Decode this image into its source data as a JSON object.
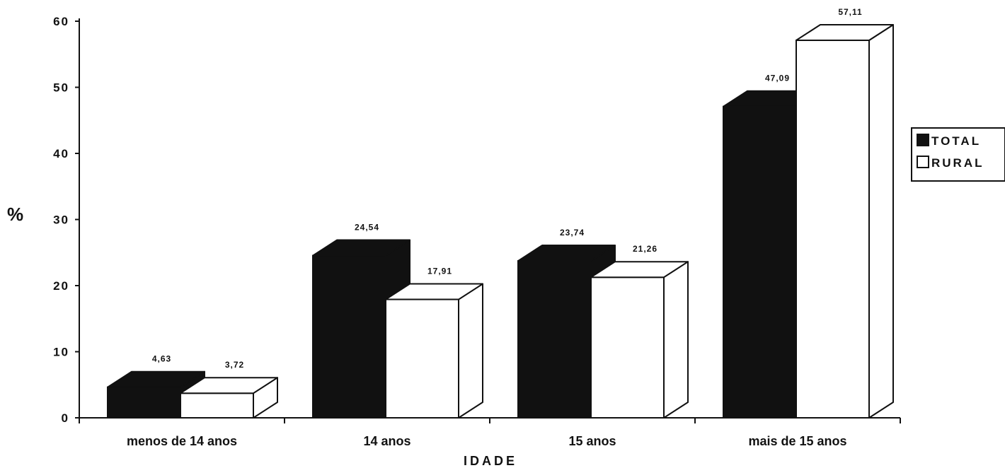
{
  "chart_data": {
    "type": "bar",
    "categories": [
      "menos de 14 anos",
      "14 anos",
      "15 anos",
      "mais de 15 anos"
    ],
    "series": [
      {
        "name": "TOTAL",
        "values": [
          4.63,
          24.54,
          23.74,
          47.09
        ],
        "labels": [
          "4,63",
          "24,54",
          "23,74",
          "47,09"
        ],
        "color": "#111111"
      },
      {
        "name": "RURAL",
        "values": [
          3.72,
          17.91,
          21.26,
          57.11
        ],
        "labels": [
          "3,72",
          "17,91",
          "21,26",
          "57,11"
        ],
        "color": "#ffffff"
      }
    ],
    "title": "",
    "xlabel": "IDADE",
    "ylabel": "%",
    "ylim": [
      0,
      60
    ],
    "yticks": [
      0,
      10,
      20,
      30,
      40,
      50,
      60
    ],
    "grid": false,
    "legend_position": "right",
    "style": "3d"
  }
}
